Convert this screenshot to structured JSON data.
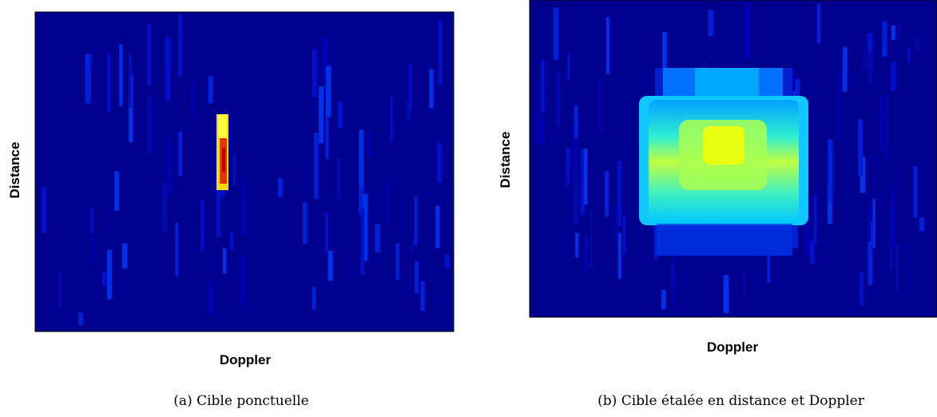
{
  "panels": [
    {
      "y_label": "Distance",
      "x_label": "Doppler",
      "caption": "(a) Cible ponctuelle"
    },
    {
      "y_label": "Distance",
      "x_label": "Doppler",
      "caption": "(b) Cible étalée en distance et Doppler"
    }
  ]
}
